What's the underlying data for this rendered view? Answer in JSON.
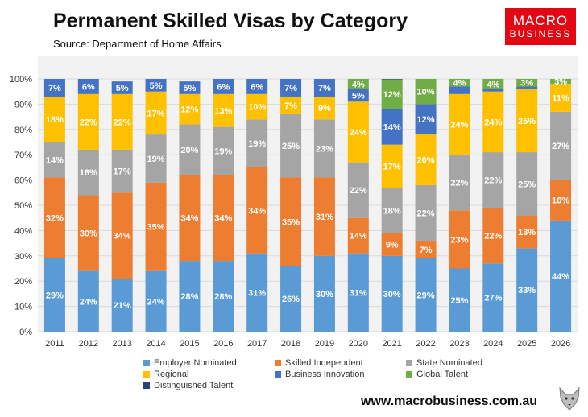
{
  "header": {
    "title": "Permanent Skilled Visas by Category",
    "subtitle": "Source: Department of Home Affairs"
  },
  "logo": {
    "line1": "MACRO",
    "line2": "BUSINESS"
  },
  "footer": {
    "url": "www.macrobusiness.com.au"
  },
  "colors": {
    "background": "#ffffff",
    "plot_area": "#f2f2f2",
    "gridline": "#d9d9d9",
    "logo_red": "#e30613"
  },
  "chart_data": {
    "type": "bar",
    "stacked": true,
    "title": "Permanent Skilled Visas by Category",
    "xlabel": "",
    "ylabel": "",
    "ylim": [
      0,
      100
    ],
    "y_ticks": [
      "0%",
      "10%",
      "20%",
      "30%",
      "40%",
      "50%",
      "60%",
      "70%",
      "80%",
      "90%",
      "100%"
    ],
    "grid": true,
    "legend_position": "bottom",
    "categories": [
      "2011",
      "2012",
      "2013",
      "2014",
      "2015",
      "2016",
      "2017",
      "2018",
      "2019",
      "2020",
      "2021",
      "2022",
      "2023",
      "2024",
      "2025",
      "2026"
    ],
    "series": [
      {
        "name": "Employer Nominated",
        "color": "#5b9bd5",
        "values": [
          29,
          24,
          21,
          24,
          28,
          28,
          31,
          26,
          30,
          31,
          30,
          29,
          25,
          27,
          33,
          44
        ],
        "labels": [
          "29%",
          "24%",
          "21%",
          "24%",
          "28%",
          "28%",
          "31%",
          "26%",
          "30%",
          "31%",
          "30%",
          "29%",
          "25%",
          "27%",
          "33%",
          "44%"
        ]
      },
      {
        "name": "Skilled Independent",
        "color": "#ed7d31",
        "values": [
          32,
          30,
          34,
          35,
          34,
          34,
          34,
          35,
          31,
          14,
          9,
          7,
          23,
          22,
          13,
          16
        ],
        "labels": [
          "32%",
          "30%",
          "34%",
          "35%",
          "34%",
          "34%",
          "34%",
          "35%",
          "31%",
          "14%",
          "9%",
          "7%",
          "23%",
          "22%",
          "13%",
          "16%"
        ]
      },
      {
        "name": "State Nominated",
        "color": "#a5a5a5",
        "values": [
          14,
          18,
          17,
          19,
          20,
          19,
          19,
          25,
          23,
          22,
          18,
          22,
          22,
          22,
          25,
          27
        ],
        "labels": [
          "14%",
          "18%",
          "17%",
          "19%",
          "20%",
          "19%",
          "19%",
          "25%",
          "23%",
          "22%",
          "18%",
          "22%",
          "22%",
          "22%",
          "25%",
          "27%"
        ]
      },
      {
        "name": "Regional",
        "color": "#ffc000",
        "values": [
          18,
          22,
          22,
          17,
          12,
          13,
          10,
          7,
          9,
          24,
          17,
          20,
          24,
          24,
          25,
          11
        ],
        "labels": [
          "18%",
          "22%",
          "22%",
          "17%",
          "12%",
          "13%",
          "10%",
          "7%",
          "9%",
          "24%",
          "17%",
          "20%",
          "24%",
          "24%",
          "25%",
          "11%"
        ]
      },
      {
        "name": "Business Innovation",
        "color": "#4472c4",
        "values": [
          7,
          6,
          5,
          5,
          5,
          6,
          6,
          7,
          7,
          5,
          14,
          12,
          3,
          1,
          1,
          0
        ],
        "labels": [
          "7%",
          "6%",
          "5%",
          "5%",
          "5%",
          "6%",
          "6%",
          "7%",
          "7%",
          "5%",
          "14%",
          "12%",
          "",
          "",
          "",
          ""
        ]
      },
      {
        "name": "Global Talent",
        "color": "#70ad47",
        "values": [
          0,
          0,
          0,
          0,
          0,
          0,
          0,
          0,
          0,
          4,
          12,
          10,
          4,
          4,
          3,
          3
        ],
        "labels": [
          "",
          "",
          "",
          "",
          "",
          "",
          "",
          "",
          "",
          "4%",
          "12%",
          "10%",
          "4%",
          "4%",
          "3%",
          "3%"
        ]
      },
      {
        "name": "Distinguished Talent",
        "color": "#264478",
        "values": [
          0,
          0,
          0,
          0,
          0,
          0,
          0,
          0,
          0,
          0,
          0.5,
          0,
          0,
          0,
          0,
          0
        ],
        "labels": [
          "",
          "",
          "",
          "",
          "",
          "",
          "",
          "",
          "",
          "",
          "",
          "",
          "",
          "",
          "",
          "0%"
        ]
      }
    ]
  }
}
